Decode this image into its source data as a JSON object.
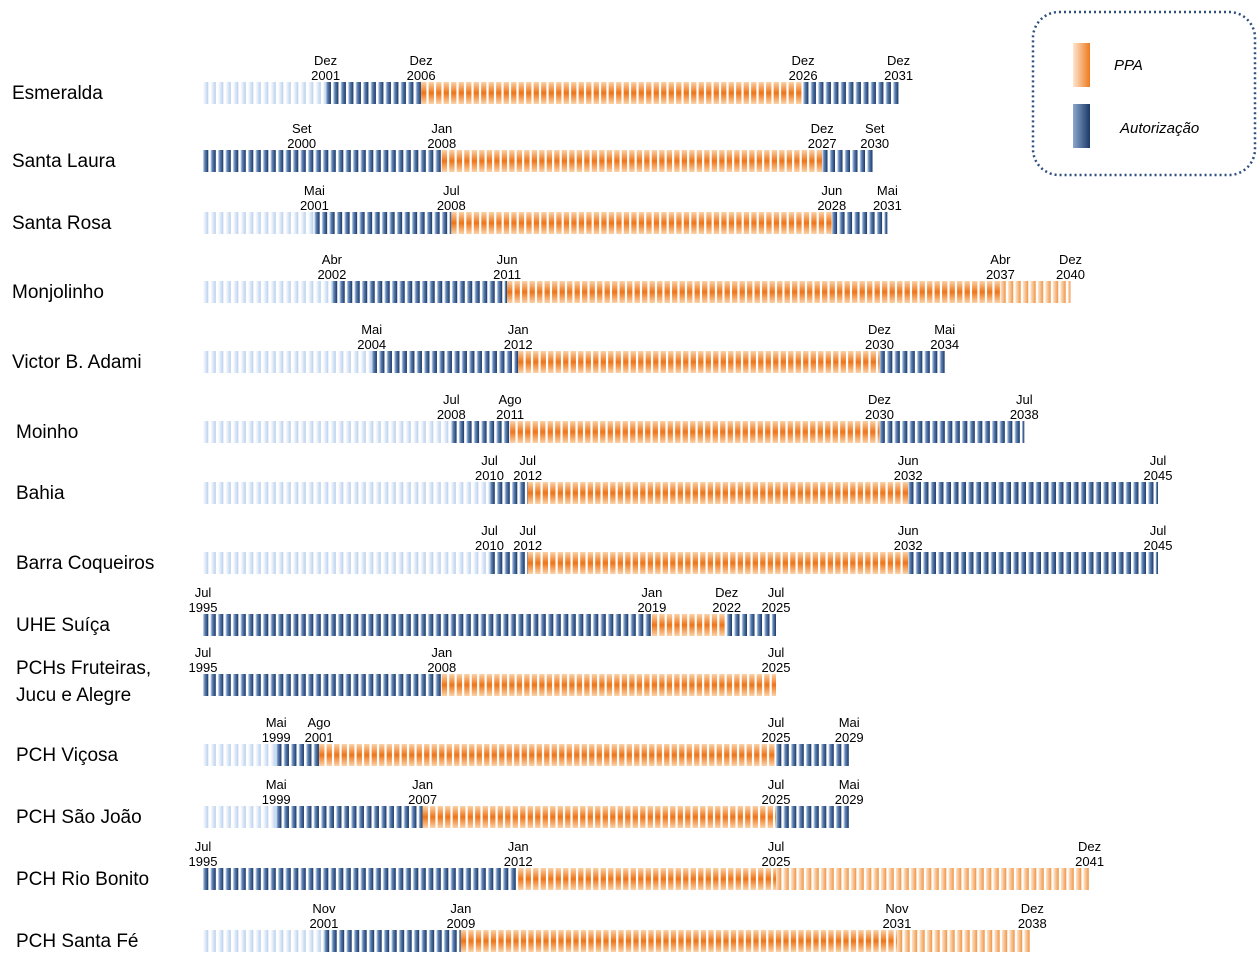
{
  "chart_data": {
    "type": "timeline",
    "legend": [
      {
        "key": "ppa",
        "label": "PPA",
        "color": "#ef7a1e"
      },
      {
        "key": "auth",
        "label": "Autorização",
        "color": "#1f3b6b"
      }
    ],
    "series": [
      {
        "name": "Esmeralda",
        "segments": [
          {
            "type": "auth_pre",
            "start": 1995.5,
            "end": 2001.92
          },
          {
            "type": "auth",
            "start": 2001.92,
            "end": 2006.92
          },
          {
            "type": "ppa",
            "start": 2006.92,
            "end": 2026.92
          },
          {
            "type": "auth",
            "start": 2026.92,
            "end": 2031.92
          }
        ],
        "ticks": [
          {
            "month": "Dez",
            "year": "2001",
            "t": 2001.92
          },
          {
            "month": "Dez",
            "year": "2006",
            "t": 2006.92
          },
          {
            "month": "Dez",
            "year": "2026",
            "t": 2026.92
          },
          {
            "month": "Dez",
            "year": "2031",
            "t": 2031.92
          }
        ]
      },
      {
        "name": "Santa Laura",
        "segments": [
          {
            "type": "auth",
            "start": 1995.5,
            "end": 2008.0
          },
          {
            "type": "ppa",
            "start": 2008.0,
            "end": 2027.92
          },
          {
            "type": "auth",
            "start": 2027.92,
            "end": 2030.67
          }
        ],
        "ticks": [
          {
            "month": "Set",
            "year": "2000",
            "t": 2000.67
          },
          {
            "month": "Jan",
            "year": "2008",
            "t": 2008.0
          },
          {
            "month": "Dez",
            "year": "2027",
            "t": 2027.92
          },
          {
            "month": "Set",
            "year": "2030",
            "t": 2030.67
          }
        ]
      },
      {
        "name": "Santa Rosa",
        "segments": [
          {
            "type": "auth_pre",
            "start": 1995.5,
            "end": 2001.33
          },
          {
            "type": "auth",
            "start": 2001.33,
            "end": 2008.5
          },
          {
            "type": "ppa",
            "start": 2008.5,
            "end": 2028.42
          },
          {
            "type": "auth",
            "start": 2028.42,
            "end": 2031.33
          }
        ],
        "ticks": [
          {
            "month": "Mai",
            "year": "2001",
            "t": 2001.33
          },
          {
            "month": "Jul",
            "year": "2008",
            "t": 2008.5
          },
          {
            "month": "Jun",
            "year": "2028",
            "t": 2028.42
          },
          {
            "month": "Mai",
            "year": "2031",
            "t": 2031.33
          }
        ]
      },
      {
        "name": "Monjolinho",
        "segments": [
          {
            "type": "auth_pre",
            "start": 1995.5,
            "end": 2002.25
          },
          {
            "type": "auth",
            "start": 2002.25,
            "end": 2011.42
          },
          {
            "type": "ppa",
            "start": 2011.42,
            "end": 2037.25
          },
          {
            "type": "ppa_post",
            "start": 2037.25,
            "end": 2040.92
          }
        ],
        "ticks": [
          {
            "month": "Abr",
            "year": "2002",
            "t": 2002.25
          },
          {
            "month": "Jun",
            "year": "2011",
            "t": 2011.42
          },
          {
            "month": "Abr",
            "year": "2037",
            "t": 2037.25
          },
          {
            "month": "Dez",
            "year": "2040",
            "t": 2040.92
          }
        ]
      },
      {
        "name": "Victor B. Adami",
        "segments": [
          {
            "type": "auth_pre",
            "start": 1995.5,
            "end": 2004.33
          },
          {
            "type": "auth",
            "start": 2004.33,
            "end": 2012.0
          },
          {
            "type": "ppa",
            "start": 2012.0,
            "end": 2030.92
          },
          {
            "type": "auth",
            "start": 2030.92,
            "end": 2034.33
          }
        ],
        "ticks": [
          {
            "month": "Mai",
            "year": "2004",
            "t": 2004.33
          },
          {
            "month": "Jan",
            "year": "2012",
            "t": 2012.0
          },
          {
            "month": "Dez",
            "year": "2030",
            "t": 2030.92
          },
          {
            "month": "Mai",
            "year": "2034",
            "t": 2034.33
          }
        ]
      },
      {
        "name": "Moinho",
        "segments": [
          {
            "type": "auth_pre",
            "start": 1995.5,
            "end": 2008.5
          },
          {
            "type": "auth",
            "start": 2008.5,
            "end": 2011.58
          },
          {
            "type": "ppa",
            "start": 2011.58,
            "end": 2030.92
          },
          {
            "type": "auth",
            "start": 2030.92,
            "end": 2038.5
          }
        ],
        "ticks": [
          {
            "month": "Jul",
            "year": "2008",
            "t": 2008.5
          },
          {
            "month": "Ago",
            "year": "2011",
            "t": 2011.58
          },
          {
            "month": "Dez",
            "year": "2030",
            "t": 2030.92
          },
          {
            "month": "Jul",
            "year": "2038",
            "t": 2038.5
          }
        ]
      },
      {
        "name": "Bahia",
        "segments": [
          {
            "type": "auth_pre",
            "start": 1995.5,
            "end": 2010.5
          },
          {
            "type": "auth",
            "start": 2010.5,
            "end": 2012.5
          },
          {
            "type": "ppa",
            "start": 2012.5,
            "end": 2032.42
          },
          {
            "type": "auth",
            "start": 2032.42,
            "end": 2045.5
          }
        ],
        "ticks": [
          {
            "month": "Jul",
            "year": "2010",
            "t": 2010.5
          },
          {
            "month": "Jul",
            "year": "2012",
            "t": 2012.5
          },
          {
            "month": "Jun",
            "year": "2032",
            "t": 2032.42
          },
          {
            "month": "Jul",
            "year": "2045",
            "t": 2045.5
          }
        ]
      },
      {
        "name": "Barra Coqueiros",
        "segments": [
          {
            "type": "auth_pre",
            "start": 1995.5,
            "end": 2010.5
          },
          {
            "type": "auth",
            "start": 2010.5,
            "end": 2012.5
          },
          {
            "type": "ppa",
            "start": 2012.5,
            "end": 2032.42
          },
          {
            "type": "auth",
            "start": 2032.42,
            "end": 2045.5
          }
        ],
        "ticks": [
          {
            "month": "Jul",
            "year": "2010",
            "t": 2010.5
          },
          {
            "month": "Jul",
            "year": "2012",
            "t": 2012.5
          },
          {
            "month": "Jun",
            "year": "2032",
            "t": 2032.42
          },
          {
            "month": "Jul",
            "year": "2045",
            "t": 2045.5
          }
        ]
      },
      {
        "name": "UHE Suíça",
        "segments": [
          {
            "type": "auth",
            "start": 1995.5,
            "end": 2019.0
          },
          {
            "type": "ppa",
            "start": 2019.0,
            "end": 2022.92
          },
          {
            "type": "auth",
            "start": 2022.92,
            "end": 2025.5
          }
        ],
        "ticks": [
          {
            "month": "Jul",
            "year": "1995",
            "t": 1995.5
          },
          {
            "month": "Jan",
            "year": "2019",
            "t": 2019.0
          },
          {
            "month": "Dez",
            "year": "2022",
            "t": 2022.92
          },
          {
            "month": "Jul",
            "year": "2025",
            "t": 2025.5
          }
        ]
      },
      {
        "name": "PCHs Fruteiras,",
        "name2": "Jucu e Alegre",
        "segments": [
          {
            "type": "auth",
            "start": 1995.5,
            "end": 2008.0
          },
          {
            "type": "ppa",
            "start": 2008.0,
            "end": 2025.5
          }
        ],
        "ticks": [
          {
            "month": "Jul",
            "year": "1995",
            "t": 1995.5
          },
          {
            "month": "Jan",
            "year": "2008",
            "t": 2008.0
          },
          {
            "month": "Jul",
            "year": "2025",
            "t": 2025.5
          }
        ]
      },
      {
        "name": "PCH Viçosa",
        "segments": [
          {
            "type": "auth_pre",
            "start": 1995.5,
            "end": 1999.33
          },
          {
            "type": "auth",
            "start": 1999.33,
            "end": 2001.58
          },
          {
            "type": "ppa",
            "start": 2001.58,
            "end": 2025.5
          },
          {
            "type": "auth",
            "start": 2025.5,
            "end": 2029.33
          }
        ],
        "ticks": [
          {
            "month": "Mai",
            "year": "1999",
            "t": 1999.33
          },
          {
            "month": "Ago",
            "year": "2001",
            "t": 2001.58
          },
          {
            "month": "Jul",
            "year": "2025",
            "t": 2025.5
          },
          {
            "month": "Mai",
            "year": "2029",
            "t": 2029.33
          }
        ]
      },
      {
        "name": "PCH São João",
        "segments": [
          {
            "type": "auth_pre",
            "start": 1995.5,
            "end": 1999.33
          },
          {
            "type": "auth",
            "start": 1999.33,
            "end": 2007.0
          },
          {
            "type": "ppa",
            "start": 2007.0,
            "end": 2025.5
          },
          {
            "type": "auth",
            "start": 2025.5,
            "end": 2029.33
          }
        ],
        "ticks": [
          {
            "month": "Mai",
            "year": "1999",
            "t": 1999.33
          },
          {
            "month": "Jan",
            "year": "2007",
            "t": 2007.0
          },
          {
            "month": "Jul",
            "year": "2025",
            "t": 2025.5
          },
          {
            "month": "Mai",
            "year": "2029",
            "t": 2029.33
          }
        ]
      },
      {
        "name": "PCH Rio Bonito",
        "segments": [
          {
            "type": "auth",
            "start": 1995.5,
            "end": 2012.0
          },
          {
            "type": "ppa",
            "start": 2012.0,
            "end": 2025.5
          },
          {
            "type": "ppa_post",
            "start": 2025.5,
            "end": 2041.92
          }
        ],
        "ticks": [
          {
            "month": "Jul",
            "year": "1995",
            "t": 1995.5
          },
          {
            "month": "Jan",
            "year": "2012",
            "t": 2012.0
          },
          {
            "month": "Jul",
            "year": "2025",
            "t": 2025.5
          },
          {
            "month": "Dez",
            "year": "2041",
            "t": 2041.92
          }
        ]
      },
      {
        "name": "PCH Santa Fé",
        "segments": [
          {
            "type": "auth_pre",
            "start": 1995.5,
            "end": 2001.83
          },
          {
            "type": "auth",
            "start": 2001.83,
            "end": 2009.0
          },
          {
            "type": "ppa",
            "start": 2009.0,
            "end": 2031.83
          },
          {
            "type": "ppa_post",
            "start": 2031.83,
            "end": 2038.92
          }
        ],
        "ticks": [
          {
            "month": "Nov",
            "year": "2001",
            "t": 2001.83
          },
          {
            "month": "Jan",
            "year": "2009",
            "t": 2009.0
          },
          {
            "month": "Nov",
            "year": "2031",
            "t": 2031.83
          },
          {
            "month": "Dez",
            "year": "2038",
            "t": 2038.92
          }
        ]
      }
    ]
  }
}
